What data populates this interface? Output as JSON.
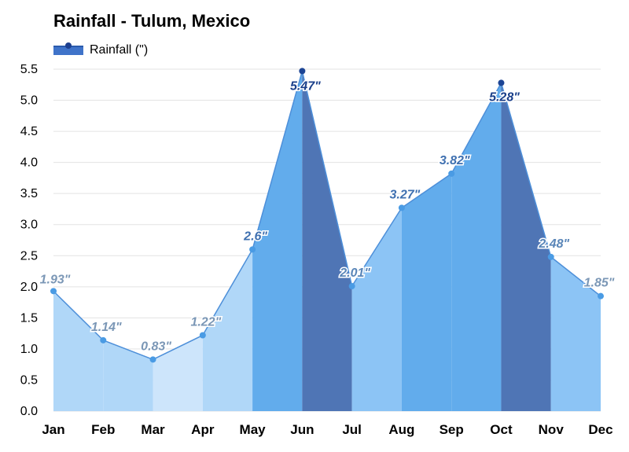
{
  "title": "Rainfall - Tulum, Mexico",
  "legend": {
    "label": "Rainfall (\")"
  },
  "chart_data": {
    "type": "area",
    "title": "Rainfall - Tulum, Mexico",
    "categories": [
      "Jan",
      "Feb",
      "Mar",
      "Apr",
      "May",
      "Jun",
      "Jul",
      "Aug",
      "Sep",
      "Oct",
      "Nov",
      "Dec"
    ],
    "series": [
      {
        "name": "Rainfall (\")",
        "values": [
          1.93,
          1.14,
          0.83,
          1.22,
          2.6,
          5.47,
          2.01,
          3.27,
          3.82,
          5.28,
          2.48,
          1.85
        ]
      }
    ],
    "data_labels": [
      "1.93\"",
      "1.14\"",
      "0.83\"",
      "1.22\"",
      "2.6\"",
      "5.47\"",
      "2.01\"",
      "3.27\"",
      "3.82\"",
      "5.28\"",
      "2.48\"",
      "1.85\""
    ],
    "ylim": [
      0,
      5.5
    ],
    "yticks": [
      "0.0",
      "0.5",
      "1.0",
      "1.5",
      "2.0",
      "2.5",
      "3.0",
      "3.5",
      "4.0",
      "4.5",
      "5.0",
      "5.5"
    ],
    "grid": true,
    "legend_position": "top-left"
  }
}
